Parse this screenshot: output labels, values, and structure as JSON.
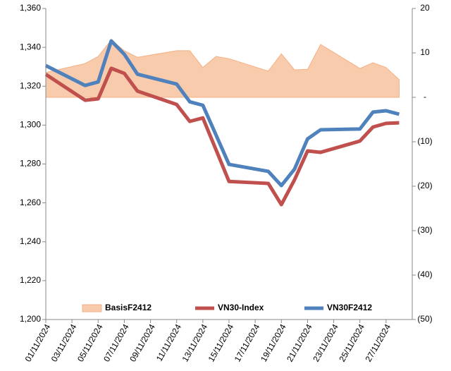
{
  "chart_data": {
    "type": "line",
    "x": [
      "01/11/2024",
      "04/11/2024",
      "05/11/2024",
      "06/11/2024",
      "07/11/2024",
      "08/11/2024",
      "11/11/2024",
      "12/11/2024",
      "13/11/2024",
      "14/11/2024",
      "15/11/2024",
      "18/11/2024",
      "19/11/2024",
      "20/11/2024",
      "21/11/2024",
      "22/11/2024",
      "25/11/2024",
      "26/11/2024",
      "27/11/2024",
      "28/11/2024"
    ],
    "xlim": [
      "01/11/2024",
      "29/11/2024"
    ],
    "xticks": [
      "01/11/2024",
      "03/11/2024",
      "05/11/2024",
      "07/11/2024",
      "09/11/2024",
      "11/11/2024",
      "13/11/2024",
      "15/11/2024",
      "17/11/2024",
      "19/11/2024",
      "21/11/2024",
      "23/11/2024",
      "25/11/2024",
      "27/11/2024"
    ],
    "ylim": [
      1200,
      1360
    ],
    "yticks": [
      {
        "value": 1200,
        "label": "1,200"
      },
      {
        "value": 1220,
        "label": "1,220"
      },
      {
        "value": 1240,
        "label": "1,240"
      },
      {
        "value": 1260,
        "label": "1,260"
      },
      {
        "value": 1280,
        "label": "1,280"
      },
      {
        "value": 1300,
        "label": "1,300"
      },
      {
        "value": 1320,
        "label": "1,320"
      },
      {
        "value": 1340,
        "label": "1,340"
      },
      {
        "value": 1360,
        "label": "1,360"
      }
    ],
    "y2lim": [
      -50,
      20
    ],
    "y2ticks": [
      {
        "value": -50,
        "label": "(50)"
      },
      {
        "value": -40,
        "label": "(40)"
      },
      {
        "value": -30,
        "label": "(30)"
      },
      {
        "value": -20,
        "label": "(20)"
      },
      {
        "value": -10,
        "label": "(10)"
      },
      {
        "value": 0,
        "label": "-"
      },
      10,
      20
    ],
    "series": [
      {
        "name": "BasisF2412",
        "kind": "area",
        "axis": "y2",
        "color": "#f8cbad",
        "values": [
          5.6,
          7.6,
          9.2,
          12.9,
          10.5,
          9,
          10.5,
          10.5,
          6.7,
          9.2,
          8.7,
          5.9,
          9.8,
          6.2,
          6.3,
          11.9,
          6.5,
          7.8,
          6.7,
          4
        ]
      },
      {
        "name": "VN30-Index",
        "kind": "line",
        "color": "#c0504d",
        "values": [
          1326.1,
          1312.8,
          1313.5,
          1329.2,
          1326.6,
          1317.5,
          1310.6,
          1301.9,
          1303.7,
          1287.4,
          1271,
          1270,
          1259.1,
          1271.8,
          1286.7,
          1286,
          1291.8,
          1299,
          1300.9,
          1301.2
        ]
      },
      {
        "name": "VN30F2412",
        "kind": "line",
        "color": "#4f81bd",
        "values": [
          1330.6,
          1320.4,
          1322.2,
          1343.3,
          1336.4,
          1326.2,
          1321.1,
          1312,
          1310.2,
          1295,
          1279.8,
          1276.2,
          1268.9,
          1277.3,
          1292.9,
          1297.6,
          1298,
          1306.7,
          1307.4,
          1305.6
        ]
      }
    ]
  }
}
